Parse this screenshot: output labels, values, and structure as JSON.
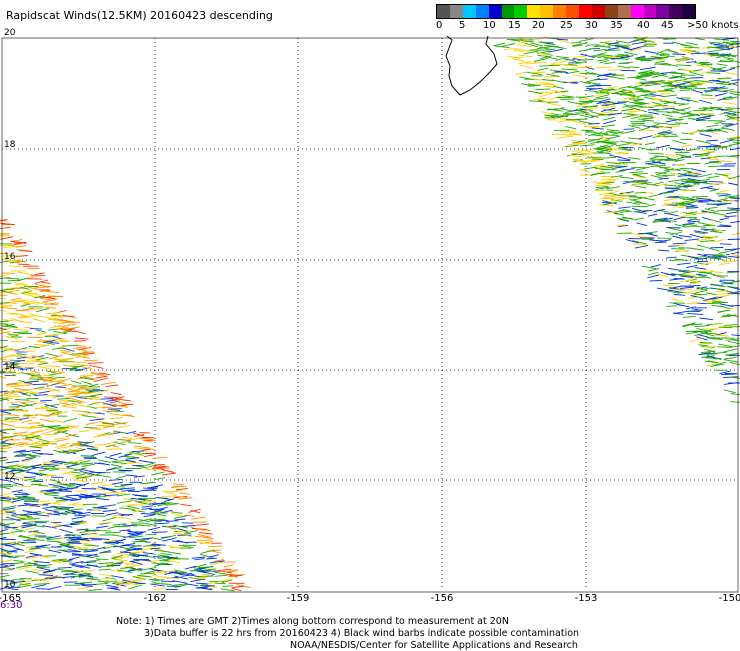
{
  "title": "Rapidscat Winds(12.5KM) 20160423 descending",
  "colorbar": {
    "colors": [
      "#555555",
      "#888888",
      "#00c8ff",
      "#0080ff",
      "#0000d0",
      "#009a00",
      "#00cc00",
      "#ffe000",
      "#ffc000",
      "#ff8000",
      "#ff5000",
      "#ff0000",
      "#cc0000",
      "#8b4513",
      "#b07050",
      "#ff00ff",
      "#c000c0",
      "#8000a0",
      "#400060",
      "#200040"
    ],
    "labels": [
      {
        "text": "0",
        "x": 436
      },
      {
        "text": "5",
        "x": 459
      },
      {
        "text": "10",
        "x": 483
      },
      {
        "text": "15",
        "x": 508
      },
      {
        "text": "20",
        "x": 532
      },
      {
        "text": "25",
        "x": 560
      },
      {
        "text": "30",
        "x": 585
      },
      {
        "text": "35",
        "x": 610
      },
      {
        "text": "40",
        "x": 637
      },
      {
        "text": "45",
        "x": 661
      },
      {
        "text": ">50 knots",
        "x": 687
      }
    ]
  },
  "lat_labels": [
    "20",
    "18",
    "16",
    "14",
    "12",
    "10"
  ],
  "lon_labels": [
    "-165",
    "-162",
    "-159",
    "-156",
    "-153",
    "-150"
  ],
  "time_label": "6:30",
  "notes": [
    "Note: 1) Times are GMT 2)Times along bottom correspond to measurement at 20N",
    "3)Data buffer is 22 hrs from 20160423 4) Black wind barbs indicate possible contamination",
    "NOAA/NESDIS/Center for Satellite Applications and Research"
  ]
}
